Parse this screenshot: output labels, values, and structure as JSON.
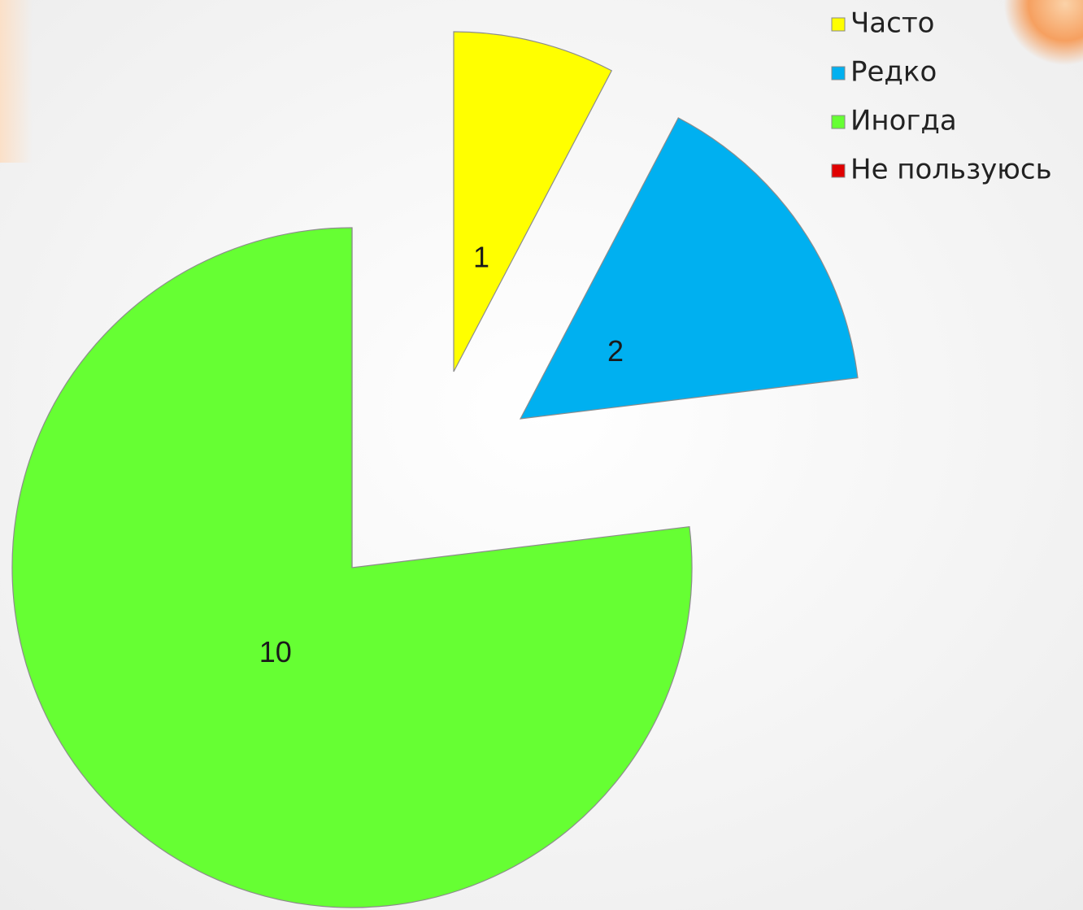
{
  "chart_data": {
    "type": "pie",
    "categories": [
      "Часто",
      "Редко",
      "Иногда",
      "Не пользуюсь"
    ],
    "values": [
      1,
      2,
      10,
      0
    ],
    "value_labels": [
      "1",
      "2",
      "10",
      null
    ],
    "colors": [
      "#ffff00",
      "#00b0f0",
      "#66ff33",
      "#e00000"
    ],
    "legend": "top-right"
  }
}
